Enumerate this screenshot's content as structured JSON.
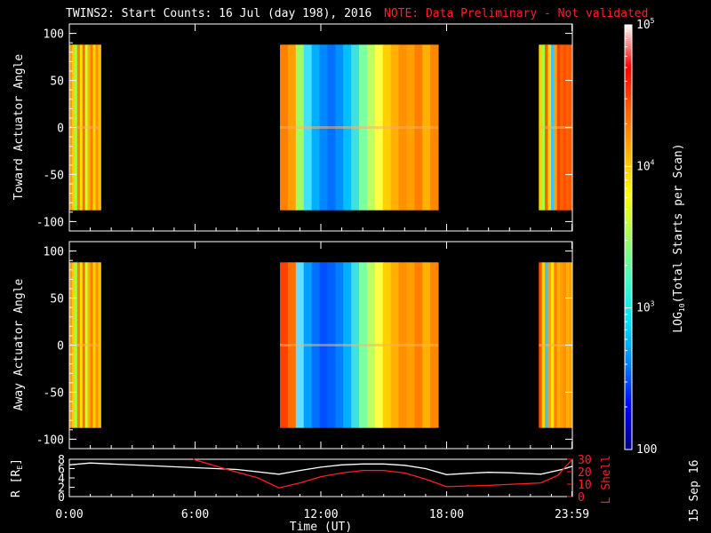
{
  "title": "TWINS2: Start Counts: 16 Jul (day 198), 2016",
  "note": "NOTE: Data Preliminary - Not validated",
  "stamp": "15 Sep 16",
  "colorbar": {
    "label_main": "LOG",
    "label_sub": "10",
    "label_rest": "(Total Starts per Scan)",
    "ticks": [
      {
        "base": "10",
        "exp": "5",
        "value": 100000
      },
      {
        "base": "10",
        "exp": "4",
        "value": 10000
      },
      {
        "base": "10",
        "exp": "3",
        "value": 1000
      },
      {
        "base": "100",
        "exp": "",
        "value": 100
      }
    ],
    "colors": [
      "#000080",
      "#0000ff",
      "#0080ff",
      "#00e0ff",
      "#40ffc0",
      "#a0ff60",
      "#ffff00",
      "#ffb000",
      "#ff6000",
      "#ff0000",
      "#ffffff"
    ]
  },
  "chart_data": [
    {
      "type": "heatmap",
      "ylabel": "Toward Actuator Angle",
      "ylim": [
        -110,
        110
      ],
      "yticks": [
        "100",
        "50",
        "0",
        "-50",
        "-100"
      ],
      "xlim": [
        0,
        24
      ],
      "data_yrange": [
        -88,
        88
      ],
      "segments": [
        {
          "start": 0.0,
          "end": 1.5,
          "level": "high",
          "colors": [
            "#ff9a00",
            "#ffd000",
            "#a0ff40",
            "#ff8000",
            "#ffe000",
            "#ff6a00",
            "#c8ff30",
            "#ffb000",
            "#ff7a00",
            "#ffd800",
            "#ff9000",
            "#ffc000"
          ]
        },
        {
          "start": 10.05,
          "end": 17.6,
          "level": "mid",
          "colors": [
            "#ff8000",
            "#ffa000",
            "#a0ff60",
            "#40e0ff",
            "#00b0ff",
            "#0088ff",
            "#0070ff",
            "#0090ff",
            "#00c0ff",
            "#40e0e0",
            "#80ffa0",
            "#c0ff60",
            "#ffff40",
            "#ffd000",
            "#ffb000",
            "#ff9000",
            "#ffa000",
            "#ff8000",
            "#ffb000",
            "#ff8800"
          ]
        },
        {
          "start": 22.4,
          "end": 23.99,
          "level": "high",
          "colors": [
            "#ffd000",
            "#a0ff40",
            "#ff6000",
            "#ffe000",
            "#40c0ff",
            "#ffa000",
            "#ff4000",
            "#ff6000",
            "#ff5000",
            "#ff6000",
            "#ff5800"
          ]
        }
      ]
    },
    {
      "type": "heatmap",
      "ylabel": "Away Actuator Angle",
      "ylim": [
        -110,
        110
      ],
      "yticks": [
        "100",
        "50",
        "0",
        "-50",
        "-100"
      ],
      "xlim": [
        0,
        24
      ],
      "data_yrange": [
        -88,
        88
      ],
      "segments": [
        {
          "start": 0.0,
          "end": 1.5,
          "level": "high",
          "colors": [
            "#ff9a00",
            "#ffd000",
            "#a0ff40",
            "#ff8000",
            "#ffe000",
            "#ff6a00",
            "#c8ff30",
            "#ffb000",
            "#ff7a00",
            "#ffd800",
            "#ff9000",
            "#ffc000"
          ]
        },
        {
          "start": 10.05,
          "end": 17.6,
          "level": "mid",
          "colors": [
            "#ff4000",
            "#ff7000",
            "#60e0ff",
            "#00a0ff",
            "#0070ff",
            "#0050ff",
            "#0060ff",
            "#0080ff",
            "#00b0ff",
            "#40e0e0",
            "#80ffa0",
            "#c0ff60",
            "#ffff40",
            "#ffd000",
            "#ffb000",
            "#ff9000",
            "#ffa000",
            "#ff8000",
            "#ffb000",
            "#ff8800"
          ]
        },
        {
          "start": 22.4,
          "end": 23.99,
          "level": "high",
          "colors": [
            "#ff5000",
            "#ffd000",
            "#40c0ff",
            "#ffa000",
            "#ffe000",
            "#ff8000",
            "#ffb000",
            "#ffa000",
            "#ff9000",
            "#ffb000",
            "#ffa000"
          ]
        }
      ]
    },
    {
      "type": "line",
      "xlabel": "Time (UT)",
      "ylabel_left": "R [R",
      "ylabel_left_sub": "E",
      "ylabel_left_end": "]",
      "ylabel_right": "L Shell",
      "xlim": [
        0,
        24
      ],
      "xticks": [
        {
          "value": 0,
          "label": "0:00"
        },
        {
          "value": 6,
          "label": "6:00"
        },
        {
          "value": 12,
          "label": "12:00"
        },
        {
          "value": 18,
          "label": "18:00"
        },
        {
          "value": 23.98,
          "label": "23:59"
        }
      ],
      "ylim_left": [
        0,
        8
      ],
      "yticks_left": [
        "8",
        "6",
        "4",
        "2",
        "0"
      ],
      "ylim_right": [
        0,
        30
      ],
      "yticks_right": [
        "30",
        "20",
        "10",
        "0"
      ],
      "series": [
        {
          "axis": "left",
          "color": "#ffffff",
          "x": [
            0,
            1,
            2,
            4,
            6,
            8,
            10,
            11,
            12,
            13,
            14,
            15,
            16,
            17,
            18,
            19,
            20,
            21,
            22.5,
            23.5,
            24
          ],
          "y": [
            6.8,
            7.2,
            7.0,
            6.6,
            6.2,
            5.8,
            4.8,
            5.6,
            6.3,
            6.8,
            7.0,
            7.0,
            6.7,
            6.0,
            4.7,
            5.0,
            5.2,
            5.1,
            4.8,
            5.8,
            6.5
          ]
        },
        {
          "axis": "right",
          "color": "#ff2020",
          "x": [
            5.9,
            7.5,
            9.0,
            10.0,
            11.0,
            12.0,
            13.0,
            14.0,
            15.0,
            16.0,
            17.0,
            18.0,
            20.0,
            22.5,
            23.3,
            24.0
          ],
          "y": [
            30,
            22,
            15,
            7,
            11,
            16,
            19,
            21,
            21,
            19,
            14,
            8,
            9,
            11,
            17,
            30
          ]
        }
      ]
    }
  ]
}
